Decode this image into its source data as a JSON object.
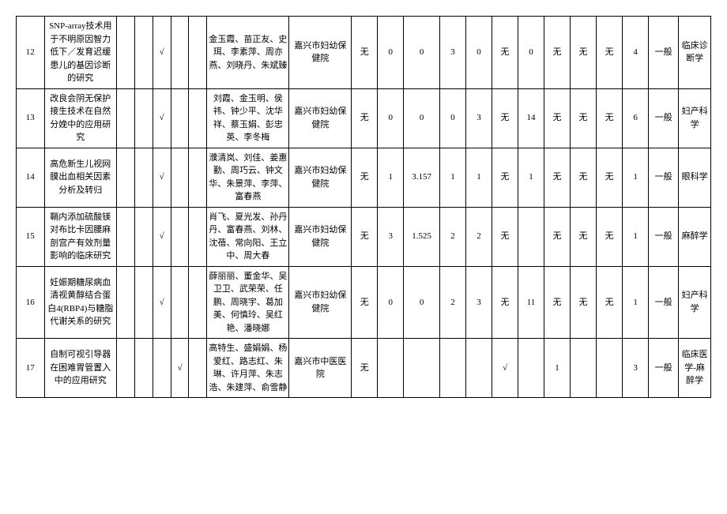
{
  "rows": [
    {
      "idx": "12",
      "title": "SNP-array技术用于不明原因智力低下／发育迟缓患儿的基因诊断的研究",
      "c3": "",
      "c4": "",
      "c5": "√",
      "c6": "",
      "c7": "",
      "names": "金玉霞、苗正友、史珥、李素萍、周亦燕、刘晓丹、朱斌臻",
      "org": "嘉兴市妇幼保健院",
      "v1": "无",
      "v2": "0",
      "v3": "0",
      "v4": "3",
      "v5": "0",
      "v6": "无",
      "v7": "0",
      "v8": "无",
      "v9": "无",
      "v10": "无",
      "v11": "4",
      "grade": "一般",
      "subj": "临床诊断学"
    },
    {
      "idx": "13",
      "title": "改良会阴无保护接生技术在自然分娩中的应用研究",
      "c3": "",
      "c4": "",
      "c5": "√",
      "c6": "",
      "c7": "",
      "names": "刘霞、金玉明、侯祎、钟少平、沈华祥、蔡玉娟、彭忠英、李冬梅",
      "org": "嘉兴市妇幼保健院",
      "v1": "无",
      "v2": "0",
      "v3": "0",
      "v4": "0",
      "v5": "3",
      "v6": "无",
      "v7": "14",
      "v8": "无",
      "v9": "无",
      "v10": "无",
      "v11": "6",
      "grade": "一般",
      "subj": "妇产科学"
    },
    {
      "idx": "14",
      "title": "高危新生儿视网膜出血相关因素分析及转归",
      "c3": "",
      "c4": "",
      "c5": "√",
      "c6": "",
      "c7": "",
      "names": "濮清岚、刘佳、姜惠勤、周巧云、钟文华、朱景萍、李萍、富春燕",
      "org": "嘉兴市妇幼保健院",
      "v1": "无",
      "v2": "1",
      "v3": "3.157",
      "v4": "1",
      "v5": "1",
      "v6": "无",
      "v7": "1",
      "v8": "无",
      "v9": "无",
      "v10": "无",
      "v11": "1",
      "grade": "一般",
      "subj": "眼科学"
    },
    {
      "idx": "15",
      "title": "鞘内添加硫酸镁对布比卡因腰麻剖宫产有效剂量影响的临床研究",
      "c3": "",
      "c4": "",
      "c5": "√",
      "c6": "",
      "c7": "",
      "names": "肖飞、夏光发、孙丹丹、富春燕、刘林、沈蓓、常向阳、王立中、周大春",
      "org": "嘉兴市妇幼保健院",
      "v1": "无",
      "v2": "3",
      "v3": "1.525",
      "v4": "2",
      "v5": "2",
      "v6": "无",
      "v7": "",
      "v8": "无",
      "v9": "无",
      "v10": "无",
      "v11": "1",
      "grade": "一般",
      "subj": "麻醉学"
    },
    {
      "idx": "16",
      "title": "妊娠期糖尿病血清视黄醇结合蛋白4(RBP4)与糖脂代谢关系的研究",
      "c3": "",
      "c4": "",
      "c5": "√",
      "c6": "",
      "c7": "",
      "names": "薛丽丽、董金华、吴卫卫、武荣荣、任鹏、周晓宇、葛加美、何慎玲、吴红艳、潘晓娜",
      "org": "嘉兴市妇幼保健院",
      "v1": "无",
      "v2": "0",
      "v3": "0",
      "v4": "2",
      "v5": "3",
      "v6": "无",
      "v7": "11",
      "v8": "无",
      "v9": "无",
      "v10": "无",
      "v11": "1",
      "grade": "一般",
      "subj": "妇产科学"
    },
    {
      "idx": "17",
      "title": "自制可视引导器在困难胃管置入中的应用研究",
      "c3": "",
      "c4": "",
      "c5": "",
      "c6": "√",
      "c7": "",
      "names": "高特生、盛娟娟、杨爱红、路志红、朱琳、许月萍、朱志浩、朱建萍、俞雪静",
      "org": "嘉兴市中医医院",
      "v1": "无",
      "v2": "",
      "v3": "",
      "v4": "",
      "v5": "",
      "v6": "√",
      "v7": "",
      "v8": "1",
      "v9": "",
      "v10": "",
      "v11": "3",
      "grade": "一般",
      "subj": "临床医学-麻醉学"
    }
  ]
}
